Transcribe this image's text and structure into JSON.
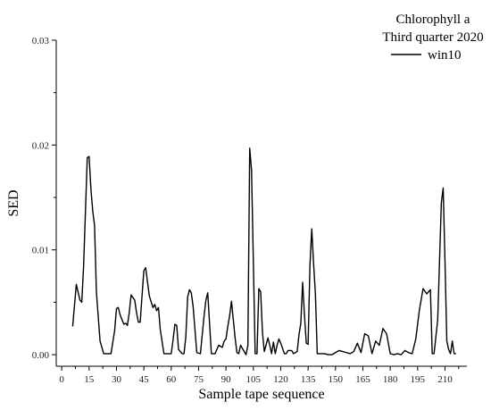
{
  "chart_data": {
    "type": "line",
    "title": "Chlorophyll a",
    "subtitle": "Third quarter 2020",
    "xlabel": "Sample tape sequence",
    "ylabel": "SED",
    "xlim": [
      -3,
      222
    ],
    "ylim": [
      -0.0011,
      0.03
    ],
    "x_ticks": [
      0,
      15,
      30,
      45,
      60,
      75,
      90,
      105,
      120,
      135,
      150,
      165,
      180,
      195,
      210
    ],
    "y_ticks": [
      0.0,
      0.01,
      0.02,
      0.03
    ],
    "y_tick_labels": [
      "0.00",
      "0.01",
      "0.02",
      "0.03"
    ],
    "legend_position": "top-right",
    "grid": false,
    "series": [
      {
        "name": "win10",
        "color": "#000000",
        "x": [
          6,
          8,
          10,
          11,
          12,
          14,
          15,
          16,
          17,
          18,
          19,
          21,
          23,
          25,
          27,
          29,
          30,
          31,
          32,
          34,
          35,
          36,
          37,
          38,
          40,
          41,
          42,
          43,
          44,
          45,
          46,
          48,
          50,
          51,
          52,
          53,
          54,
          56,
          57,
          60,
          61,
          62,
          63,
          64,
          66,
          67,
          68,
          69,
          70,
          71,
          72,
          74,
          76,
          78,
          79,
          80,
          81,
          82,
          84,
          86,
          88,
          89,
          90,
          91,
          92,
          93,
          95,
          96,
          97,
          98,
          99,
          101,
          102,
          103,
          104,
          106,
          107,
          108,
          109,
          110,
          111,
          113,
          114,
          115,
          116,
          117,
          118,
          119,
          120,
          121,
          122,
          123,
          124,
          126,
          127,
          129,
          130,
          131,
          132,
          133,
          134,
          135,
          136,
          137,
          138,
          139,
          140,
          141,
          142,
          144,
          146,
          148,
          150,
          152,
          154,
          156,
          158,
          160,
          162,
          164,
          166,
          168,
          170,
          172,
          174,
          176,
          178,
          180,
          182,
          184,
          186,
          188,
          190,
          192,
          194,
          196,
          198,
          200,
          202,
          203,
          204,
          206,
          208,
          209,
          210,
          211,
          212,
          213,
          214,
          215,
          216
        ],
        "values": [
          0.0027,
          0.0067,
          0.0052,
          0.005,
          0.0085,
          0.0188,
          0.0189,
          0.0158,
          0.0137,
          0.0123,
          0.006,
          0.0013,
          0.0001,
          0.0001,
          0.0001,
          0.0023,
          0.0044,
          0.0045,
          0.0038,
          0.0029,
          0.003,
          0.0028,
          0.004,
          0.0057,
          0.0052,
          0.004,
          0.0031,
          0.0031,
          0.0056,
          0.008,
          0.0083,
          0.0056,
          0.0045,
          0.0048,
          0.0042,
          0.0045,
          0.0024,
          0.0001,
          0.0001,
          0.0001,
          0.0014,
          0.0029,
          0.0028,
          0.0005,
          0.0001,
          0.0001,
          0.0017,
          0.0055,
          0.0062,
          0.0059,
          0.0046,
          0.0002,
          0.0001,
          0.0037,
          0.0052,
          0.0059,
          0.003,
          0.0001,
          0.0001,
          0.0009,
          0.0007,
          0.0013,
          0.0015,
          0.0027,
          0.0037,
          0.0051,
          0.0016,
          0.0002,
          0.0001,
          0.0009,
          0.0006,
          0.0,
          0.0009,
          0.0197,
          0.0176,
          0.0001,
          0.0001,
          0.0063,
          0.006,
          0.0021,
          0.0003,
          0.0016,
          0.0009,
          0.0001,
          0.0012,
          0.0001,
          0.0009,
          0.0015,
          0.0011,
          0.0006,
          0.0001,
          0.0001,
          0.0004,
          0.0004,
          0.0001,
          0.0003,
          0.0019,
          0.003,
          0.0069,
          0.0038,
          0.0011,
          0.001,
          0.0085,
          0.012,
          0.0087,
          0.0058,
          0.0001,
          0.0001,
          0.0001,
          0.0001,
          0.0,
          0.0,
          0.0002,
          0.0004,
          0.0003,
          0.0002,
          0.0001,
          0.0003,
          0.0011,
          0.0002,
          0.002,
          0.0018,
          0.0001,
          0.0013,
          0.0009,
          0.0025,
          0.002,
          0.0001,
          0.0,
          0.0001,
          0.0,
          0.0004,
          0.0002,
          0.0001,
          0.0015,
          0.0043,
          0.0063,
          0.0058,
          0.0062,
          0.0001,
          0.0001,
          0.0033,
          0.0145,
          0.0159,
          0.0089,
          0.0013,
          0.0005,
          0.0001,
          0.0013,
          0.0001,
          0.0001
        ]
      }
    ]
  }
}
